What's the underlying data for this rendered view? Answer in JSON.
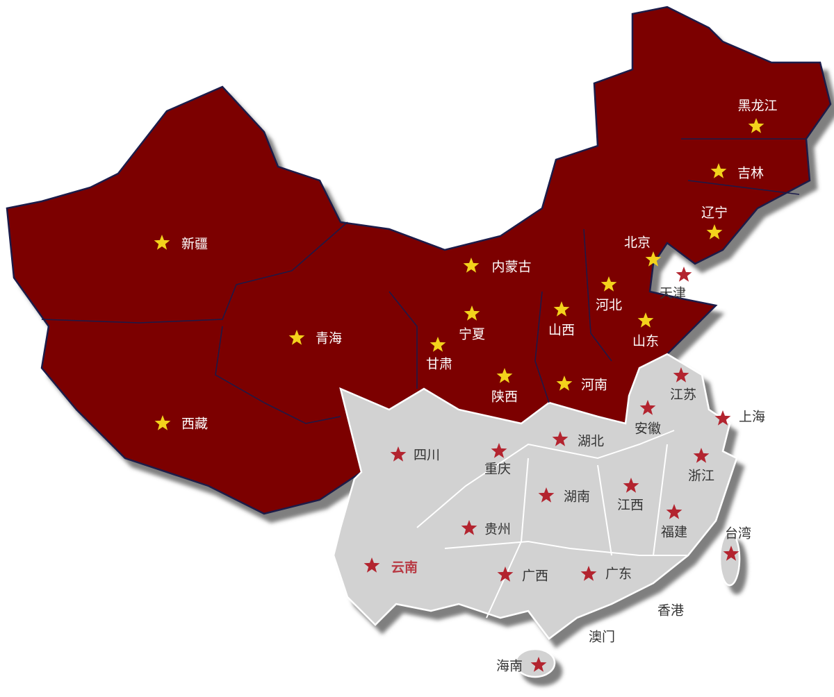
{
  "regions": [
    {
      "color": "#7b0000",
      "border": "#1a1a4a",
      "star_color": "#f3d21c",
      "label_color": "#ffffff",
      "provinces": [
        {
          "label": "新疆"
        },
        {
          "label": "青海"
        },
        {
          "label": "西藏"
        },
        {
          "label": "内蒙古"
        },
        {
          "label": "宁夏"
        },
        {
          "label": "甘肃"
        },
        {
          "label": "陕西"
        },
        {
          "label": "山西"
        },
        {
          "label": "河北"
        },
        {
          "label": "北京"
        },
        {
          "label": "山东"
        },
        {
          "label": "河南"
        },
        {
          "label": "辽宁"
        },
        {
          "label": "吉林"
        },
        {
          "label": "黑龙江"
        }
      ]
    },
    {
      "color": "#d2d2d2",
      "border": "#ffffff",
      "star_color": "#b3242f",
      "label_color": "#333333",
      "highlight_color": "#b83a44",
      "provinces": [
        {
          "label": "天津"
        },
        {
          "label": "江苏"
        },
        {
          "label": "上海"
        },
        {
          "label": "安徽"
        },
        {
          "label": "湖北"
        },
        {
          "label": "四川"
        },
        {
          "label": "重庆"
        },
        {
          "label": "浙江"
        },
        {
          "label": "湖南"
        },
        {
          "label": "江西"
        },
        {
          "label": "福建"
        },
        {
          "label": "贵州"
        },
        {
          "label": "云南",
          "highlighted": true
        },
        {
          "label": "广西"
        },
        {
          "label": "广东"
        },
        {
          "label": "台湾"
        },
        {
          "label": "海南"
        }
      ]
    }
  ],
  "plain_labels": [
    "香港",
    "澳门"
  ]
}
